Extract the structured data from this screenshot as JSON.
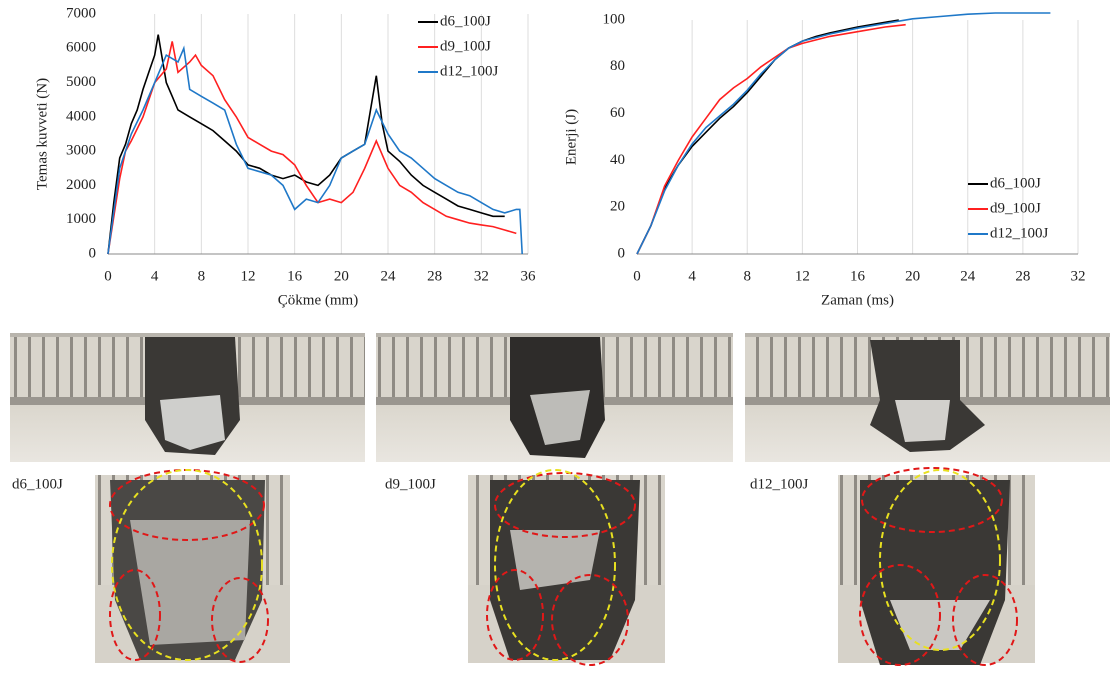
{
  "chart_data": [
    {
      "type": "line",
      "xlabel": "Çökme (mm)",
      "ylabel": "Temas kuvveti (N)",
      "xlim": [
        0,
        36
      ],
      "xticks": [
        0,
        4,
        8,
        12,
        16,
        20,
        24,
        28,
        32,
        36
      ],
      "ylim": [
        0,
        7000
      ],
      "yticks": [
        0,
        1000,
        2000,
        3000,
        4000,
        5000,
        6000,
        7000
      ],
      "grid": "x",
      "legend": "upper-right",
      "series": [
        {
          "name": "d6_100J",
          "color": "#000000",
          "x": [
            0,
            0.5,
            1,
            1.5,
            2,
            2.5,
            3,
            3.5,
            4,
            4.3,
            5,
            5.5,
            6,
            7,
            8,
            9,
            10,
            11,
            12,
            13,
            14,
            15,
            16,
            17,
            18,
            19,
            20,
            21,
            22,
            22.5,
            23,
            23.5,
            24,
            25,
            26,
            27,
            28,
            29,
            30,
            31,
            32,
            33,
            34
          ],
          "values": [
            0,
            1500,
            2800,
            3200,
            3800,
            4200,
            4800,
            5300,
            5800,
            6400,
            5000,
            4600,
            4200,
            4000,
            3800,
            3600,
            3300,
            3000,
            2600,
            2500,
            2300,
            2200,
            2300,
            2100,
            2000,
            2300,
            2800,
            3000,
            3200,
            4200,
            5200,
            3800,
            3000,
            2700,
            2300,
            2000,
            1800,
            1600,
            1400,
            1300,
            1200,
            1100,
            1100
          ]
        },
        {
          "name": "d9_100J",
          "color": "#ff2020",
          "x": [
            0,
            1,
            1.5,
            2,
            3,
            4,
            5,
            5.5,
            6,
            7,
            7.5,
            8,
            9,
            10,
            11,
            12,
            13,
            14,
            15,
            16,
            17,
            18,
            19,
            20,
            21,
            22,
            23,
            24,
            25,
            26,
            27,
            28,
            29,
            30,
            31,
            32,
            33,
            34,
            35
          ],
          "values": [
            0,
            2200,
            3000,
            3300,
            4000,
            5000,
            5400,
            6200,
            5300,
            5600,
            5800,
            5500,
            5200,
            4500,
            4000,
            3400,
            3200,
            3000,
            2900,
            2600,
            2000,
            1500,
            1600,
            1500,
            1800,
            2500,
            3300,
            2500,
            2000,
            1800,
            1500,
            1300,
            1100,
            1000,
            900,
            850,
            800,
            700,
            600
          ]
        },
        {
          "name": "d12_100J",
          "color": "#1f78c8",
          "x": [
            0,
            1,
            2,
            3,
            4,
            5,
            6,
            6.5,
            7,
            8,
            9,
            10,
            11,
            12,
            13,
            14,
            15,
            16,
            17,
            18,
            19,
            20,
            21,
            22,
            23,
            24,
            25,
            26,
            27,
            28,
            29,
            30,
            31,
            32,
            33,
            34,
            35,
            35.3,
            35.5
          ],
          "values": [
            0,
            2500,
            3500,
            4200,
            5000,
            5800,
            5600,
            6000,
            4800,
            4600,
            4400,
            4200,
            3200,
            2500,
            2400,
            2300,
            2000,
            1300,
            1600,
            1500,
            2000,
            2800,
            3000,
            3200,
            4200,
            3500,
            3000,
            2800,
            2500,
            2200,
            2000,
            1800,
            1700,
            1500,
            1300,
            1200,
            1300,
            1300,
            0
          ]
        }
      ]
    },
    {
      "type": "line",
      "xlabel": "Zaman (ms)",
      "ylabel": "Enerji (J)",
      "xlim": [
        0,
        32
      ],
      "xticks": [
        0,
        4,
        8,
        12,
        16,
        20,
        24,
        28,
        32
      ],
      "ylim": [
        0,
        100
      ],
      "yticks": [
        0,
        20,
        40,
        60,
        80,
        100
      ],
      "grid": "x",
      "legend": "lower-right",
      "series": [
        {
          "name": "d6_100J",
          "color": "#000000",
          "x": [
            0,
            1,
            2,
            3,
            4,
            5,
            6,
            7,
            8,
            9,
            10,
            11,
            12,
            13,
            14,
            16,
            18,
            19
          ],
          "values": [
            0,
            12,
            28,
            38,
            46,
            52,
            58,
            63,
            69,
            76,
            83,
            88,
            91,
            93,
            94.5,
            97,
            99,
            100
          ]
        },
        {
          "name": "d9_100J",
          "color": "#ff2020",
          "x": [
            0,
            1,
            2,
            3,
            4,
            5,
            6,
            7,
            8,
            9,
            10,
            11,
            12,
            14,
            16,
            18,
            19.5
          ],
          "values": [
            0,
            12,
            29,
            40,
            50,
            58,
            66,
            71,
            75,
            80,
            84,
            88,
            90,
            93,
            95,
            97,
            98
          ]
        },
        {
          "name": "d12_100J",
          "color": "#1f78c8",
          "x": [
            0,
            1,
            2,
            3,
            4,
            5,
            6,
            7,
            8,
            9,
            10,
            11,
            12,
            14,
            16,
            18,
            20,
            22,
            24,
            26,
            28,
            30
          ],
          "values": [
            0,
            12,
            27,
            38,
            47,
            54,
            59,
            64,
            70,
            77,
            83,
            88,
            91,
            94,
            96.5,
            98.5,
            100.5,
            101.5,
            102.5,
            103,
            103,
            103
          ]
        }
      ]
    }
  ],
  "photo_labels": [
    "d6_100J",
    "d9_100J",
    "d12_100J"
  ]
}
